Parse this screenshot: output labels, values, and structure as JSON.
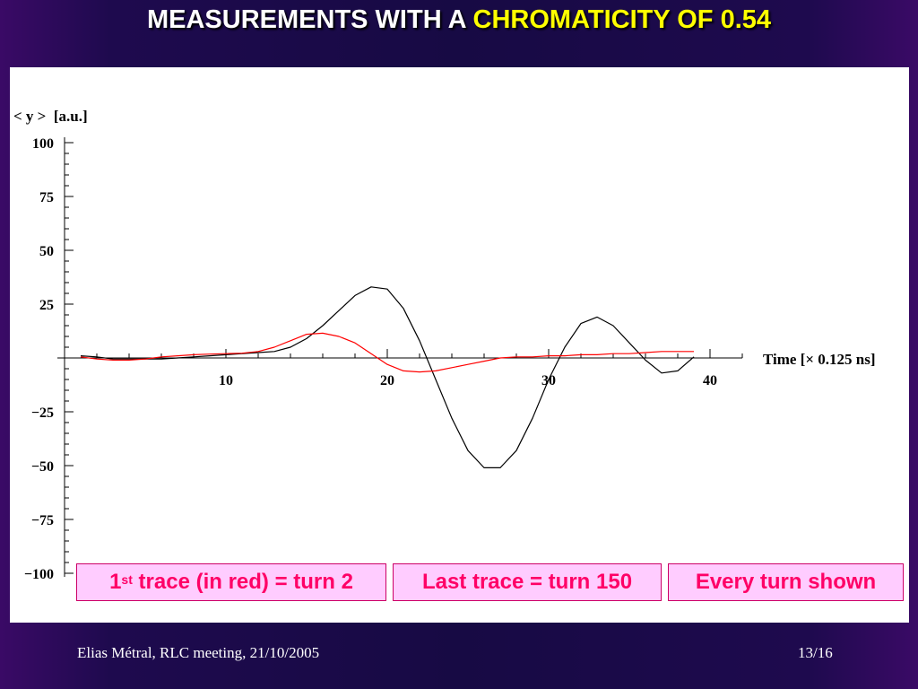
{
  "slide": {
    "title_prefix": "MEASUREMENTS WITH A ",
    "title_highlight": "CHROMATICITY OF 0.54",
    "footer_left": "Elias Métral, RLC meeting, 21/10/2005",
    "footer_right": "13/16"
  },
  "notes": {
    "first_trace_num": "1",
    "first_trace_sup": "st",
    "first_trace_rest": " trace (in red) = turn 2",
    "last_trace": "Last trace = turn 150",
    "every_turn": "Every turn shown"
  },
  "colors": {
    "first_trace": "#ff0000",
    "last_trace": "#000000",
    "note_text": "#ff0066",
    "note_background": "#ffccff",
    "title_highlight": "#ffff00"
  },
  "chart_data": {
    "type": "line",
    "xlabel": "Time [× 0.125 ns]",
    "ylabel": "< y >  [a.u.]",
    "xlim": [
      0,
      42
    ],
    "ylim": [
      -100,
      100
    ],
    "x_ticks": [
      10,
      20,
      30,
      40
    ],
    "y_ticks": [
      100,
      75,
      50,
      25,
      -25,
      -50,
      -75,
      -100
    ],
    "x_tick_labels": [
      "10",
      "20",
      "30",
      "40"
    ],
    "y_tick_labels": [
      "100",
      "75",
      "50",
      "25",
      "−25",
      "−50",
      "−75",
      "−100"
    ],
    "grid": false,
    "series": [
      {
        "color": "#000000",
        "points": [
          [
            1,
            1
          ],
          [
            2,
            0.5
          ],
          [
            3,
            -0.5
          ],
          [
            4,
            -0.5
          ],
          [
            5,
            -0.5
          ],
          [
            6,
            -0.5
          ],
          [
            7,
            0
          ],
          [
            8,
            0.5
          ],
          [
            9,
            1
          ],
          [
            10,
            1.5
          ],
          [
            11,
            2
          ],
          [
            12,
            2.5
          ],
          [
            13,
            3
          ],
          [
            14,
            5
          ],
          [
            15,
            9
          ],
          [
            16,
            15
          ],
          [
            17,
            22
          ],
          [
            18,
            29
          ],
          [
            19,
            33
          ],
          [
            20,
            32
          ],
          [
            21,
            23
          ],
          [
            22,
            8
          ],
          [
            23,
            -10
          ],
          [
            24,
            -28
          ],
          [
            25,
            -43
          ],
          [
            26,
            -51
          ],
          [
            27,
            -51
          ],
          [
            28,
            -43
          ],
          [
            29,
            -28
          ],
          [
            30,
            -10
          ],
          [
            31,
            5
          ],
          [
            32,
            16
          ],
          [
            33,
            19
          ],
          [
            34,
            15
          ],
          [
            35,
            7
          ],
          [
            36,
            -1
          ],
          [
            37,
            -7
          ],
          [
            38,
            -6
          ],
          [
            39,
            0.5
          ]
        ]
      },
      {
        "color": "#ff0000",
        "points": [
          [
            1,
            0.5
          ],
          [
            2,
            -0.5
          ],
          [
            3,
            -1
          ],
          [
            4,
            -1
          ],
          [
            5,
            -0.5
          ],
          [
            6,
            0.5
          ],
          [
            7,
            1
          ],
          [
            8,
            1.5
          ],
          [
            9,
            1.8
          ],
          [
            10,
            2
          ],
          [
            11,
            2.2
          ],
          [
            12,
            3
          ],
          [
            13,
            5
          ],
          [
            14,
            8
          ],
          [
            15,
            11
          ],
          [
            16,
            11.5
          ],
          [
            17,
            10
          ],
          [
            18,
            7
          ],
          [
            19,
            2
          ],
          [
            20,
            -3
          ],
          [
            21,
            -6
          ],
          [
            22,
            -6.5
          ],
          [
            23,
            -6
          ],
          [
            24,
            -4.5
          ],
          [
            25,
            -3
          ],
          [
            26,
            -1.5
          ],
          [
            27,
            0
          ],
          [
            28,
            0.5
          ],
          [
            29,
            0.5
          ],
          [
            30,
            1
          ],
          [
            31,
            1
          ],
          [
            32,
            1.5
          ],
          [
            33,
            1.5
          ],
          [
            34,
            2
          ],
          [
            35,
            2
          ],
          [
            36,
            2.5
          ],
          [
            37,
            3
          ],
          [
            38,
            3
          ],
          [
            39,
            3
          ]
        ]
      }
    ]
  }
}
